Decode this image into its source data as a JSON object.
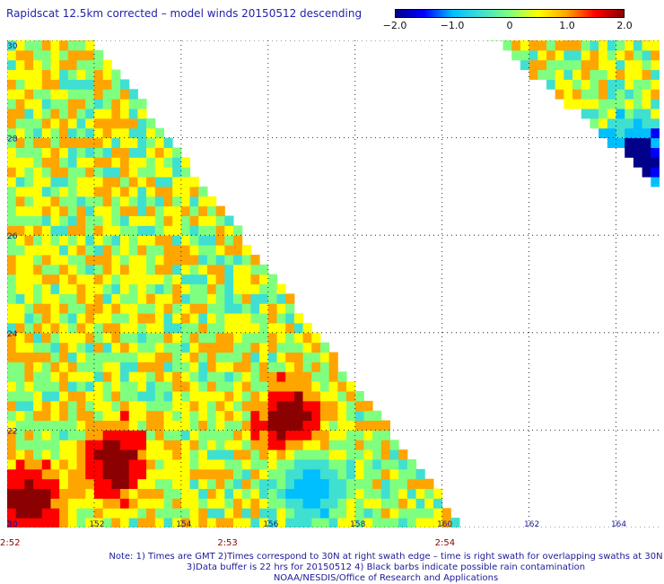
{
  "title": "Rapidscat 12.5km corrected – model winds 20150512 descending",
  "colorbar": {
    "ticks": [
      "−2.0",
      "−1.0",
      "0",
      "1.0",
      "2.0"
    ],
    "colors": [
      "#00008b",
      "#0000ff",
      "#00bfff",
      "#40e0d0",
      "#7fff7f",
      "#ffff00",
      "#ffa500",
      "#ff0000",
      "#8b0000"
    ]
  },
  "chart_data": {
    "type": "heatmap",
    "title": "Rapidscat 12.5km corrected – model winds 20150512 descending",
    "x_ticks": [
      "150",
      "152",
      "154",
      "156",
      "158",
      "160",
      "162",
      "164"
    ],
    "y_ticks": [
      "20",
      "22",
      "24",
      "26",
      "28",
      "30"
    ],
    "xlim": [
      150,
      165
    ],
    "ylim": [
      20,
      30
    ],
    "value_range": [
      -2.0,
      2.0
    ],
    "grid": true,
    "time_labels": [
      {
        "lon": 150,
        "text": "2:52"
      },
      {
        "lon": 155,
        "text": "2:53"
      },
      {
        "lon": 160,
        "text": "2:54"
      }
    ],
    "swaths": [
      {
        "name": "main",
        "lon_range": [
          150,
          160.5
        ],
        "lat_range": [
          20,
          30
        ],
        "mean": 0.3
      },
      {
        "name": "upper-right",
        "lon_range": [
          161.2,
          165
        ],
        "lat_range": [
          27.0,
          30
        ],
        "mean": 0.6
      }
    ],
    "features": [
      {
        "desc": "high",
        "lon": 156.5,
        "lat": 22.2,
        "value": 2.0
      },
      {
        "desc": "high",
        "lon": 152.5,
        "lat": 21.3,
        "value": 2.0
      },
      {
        "desc": "high",
        "lon": 150.5,
        "lat": 20.5,
        "value": 2.0
      },
      {
        "desc": "low",
        "lon": 157,
        "lat": 20.8,
        "value": -1.0
      },
      {
        "desc": "low",
        "lon": 164.5,
        "lat": 27.6,
        "value": -2.0
      }
    ]
  },
  "footer": {
    "line1": "Note: 1) Times are GMT 2)Times correspond to 30N at right swath edge – time is right swath for overlapping swaths at 30N",
    "line2": "3)Data buffer is 22 hrs for 20150512 4) Black barbs indicate possible rain contamination",
    "line3": "NOAA/NESDIS/Office of Research and Applications"
  }
}
